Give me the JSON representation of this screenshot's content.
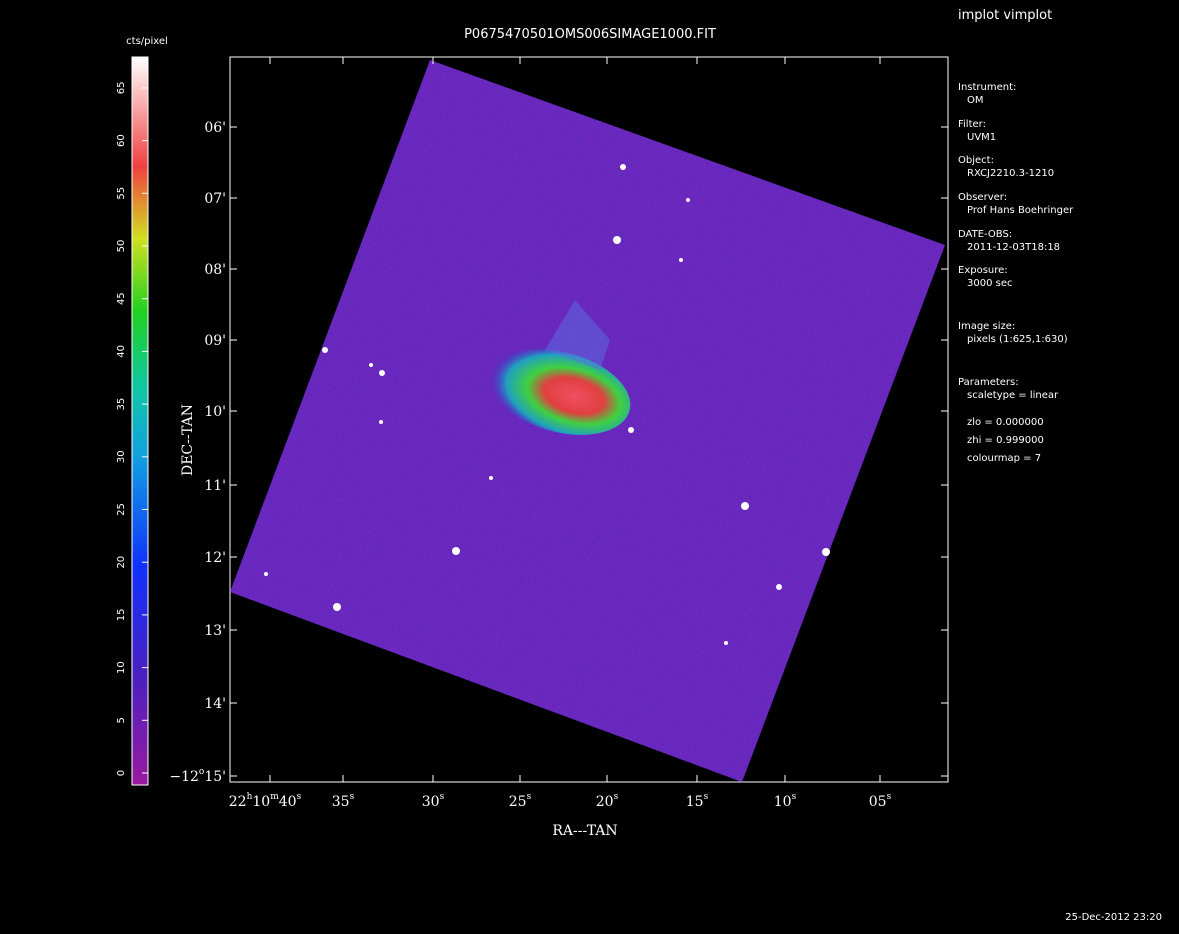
{
  "header": {
    "title": "P0675470501OMS006SIMAGE1000.FIT",
    "program": "implot vimplot",
    "timestamp": "25-Dec-2012 23:20"
  },
  "colorbar": {
    "label": "cts/pixel",
    "ticks": [
      "0",
      "5",
      "10",
      "15",
      "20",
      "25",
      "30",
      "35",
      "40",
      "45",
      "50",
      "55",
      "60",
      "65"
    ]
  },
  "axes": {
    "x_label": "RA---TAN",
    "y_label": "DEC--TAN",
    "x_ticks": [
      {
        "parts": [
          "22",
          "h",
          "10",
          "m",
          "40",
          "s"
        ]
      },
      {
        "parts": [
          "35",
          "s"
        ]
      },
      {
        "parts": [
          "30",
          "s"
        ]
      },
      {
        "parts": [
          "25",
          "s"
        ]
      },
      {
        "parts": [
          "20",
          "s"
        ]
      },
      {
        "parts": [
          "15",
          "s"
        ]
      },
      {
        "parts": [
          "10",
          "s"
        ]
      },
      {
        "parts": [
          "05",
          "s"
        ]
      }
    ],
    "y_ticks": [
      {
        "parts": [
          "06'"
        ]
      },
      {
        "parts": [
          "07'"
        ]
      },
      {
        "parts": [
          "08'"
        ]
      },
      {
        "parts": [
          "09'"
        ]
      },
      {
        "parts": [
          "10'"
        ]
      },
      {
        "parts": [
          "11'"
        ]
      },
      {
        "parts": [
          "12'"
        ]
      },
      {
        "parts": [
          "13'"
        ]
      },
      {
        "parts": [
          "14'"
        ]
      },
      {
        "parts": [
          "−12",
          "o",
          "15'"
        ]
      }
    ]
  },
  "info": [
    {
      "key": "Instrument:",
      "value": "OM"
    },
    {
      "key": "Filter:",
      "value": "UVM1"
    },
    {
      "key": "Object:",
      "value": "RXCJ2210.3-1210"
    },
    {
      "key": "Observer:",
      "value": "Prof Hans Boehringer"
    },
    {
      "key": "DATE-OBS:",
      "value": "2011-12-03T18:18"
    },
    {
      "key": "Exposure:",
      "value": "3000 sec"
    },
    {
      "key": "Image size:",
      "value": "pixels (1:625,1:630)"
    },
    {
      "key": "Parameters:",
      "value": "scaletype = linear"
    }
  ],
  "parameters": [
    "zlo = 0.000000",
    "zhi = 0.999000",
    "colourmap =   7"
  ]
}
